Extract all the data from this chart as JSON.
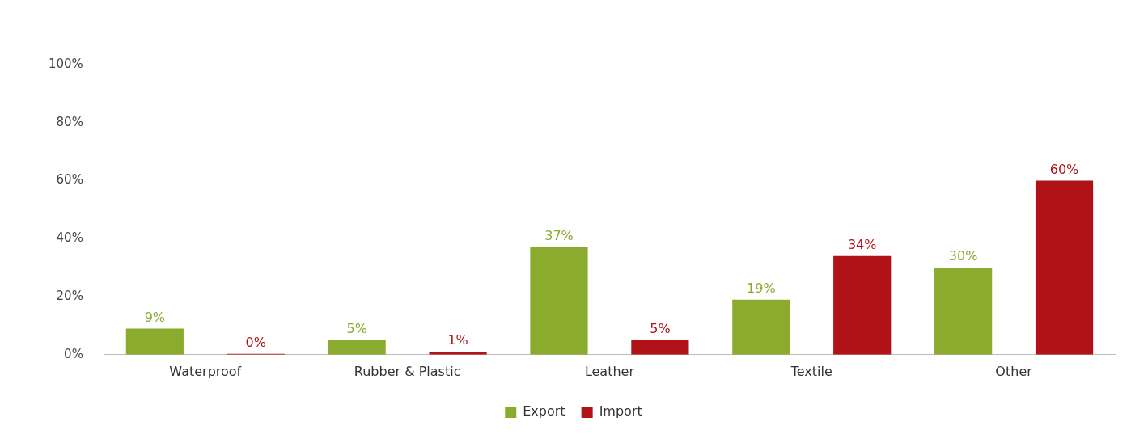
{
  "chart_data": {
    "type": "bar",
    "categories": [
      "Waterproof",
      "Rubber & Plastic",
      "Leather",
      "Textile",
      "Other"
    ],
    "series": [
      {
        "name": "Export",
        "color": "#8aab2e",
        "values": [
          9,
          5,
          37,
          19,
          30
        ],
        "value_labels": [
          "9%",
          "5%",
          "37%",
          "19%",
          "30%"
        ]
      },
      {
        "name": "Import",
        "color": "#b01218",
        "values": [
          0,
          1,
          5,
          34,
          60
        ],
        "value_labels": [
          "0%",
          "1%",
          "5%",
          "34%",
          "60%"
        ]
      }
    ],
    "ylim": [
      0,
      100
    ],
    "yticks": [
      {
        "value": 0,
        "label": "0%"
      },
      {
        "value": 20,
        "label": "20%"
      },
      {
        "value": 40,
        "label": "40%"
      },
      {
        "value": 60,
        "label": "60%"
      },
      {
        "value": 80,
        "label": "80%"
      },
      {
        "value": 100,
        "label": "100%"
      }
    ],
    "grid": false,
    "legend": "bottom"
  }
}
